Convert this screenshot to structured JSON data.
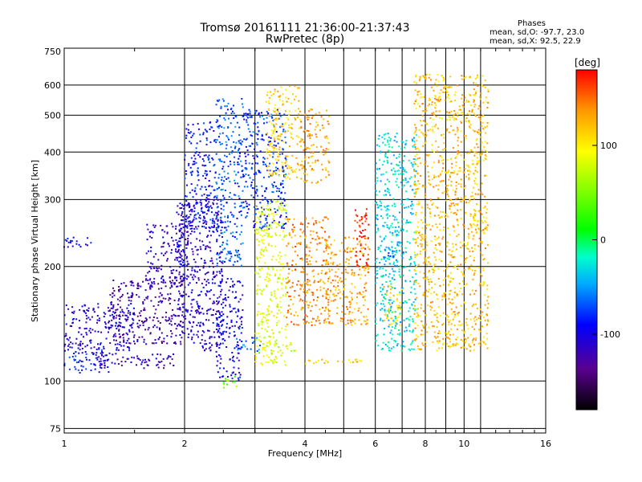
{
  "chart_data": {
    "type": "scatter",
    "title": "Tromsø 20161111 21:36:00-21:37:43",
    "subtitle": "RwPretec (8p)",
    "xlabel": "Frequency [MHz]",
    "ylabel": "Stationary phase Virtual Height [km]",
    "x_scale": "log",
    "y_scale": "log",
    "xlim": [
      1,
      16
    ],
    "ylim": [
      73,
      750
    ],
    "x_ticks": [
      1,
      2,
      4,
      6,
      8,
      10,
      16
    ],
    "x_tick_labels": [
      "1",
      "2",
      "4",
      "6",
      "8",
      "10",
      "16"
    ],
    "x_grid_extra": [
      3,
      5,
      7,
      9,
      11
    ],
    "y_ticks": [
      75,
      100,
      200,
      300,
      400,
      500,
      600,
      750
    ],
    "y_tick_labels": [
      "75",
      "100",
      "200",
      "300",
      "400",
      "500",
      "600",
      "750"
    ],
    "grid": true,
    "phase_box": {
      "title": "Phases",
      "line_o": "mean, sd,O: -97.7, 23.0",
      "line_x": "mean, sd,X:  92.5, 22.9"
    },
    "colorbar": {
      "label": "[deg]",
      "range": [
        -180,
        180
      ],
      "ticks": [
        100,
        0,
        -100
      ],
      "tick_labels": [
        "100",
        "0",
        "-100"
      ]
    },
    "regions": [
      {
        "f": [
          1.0,
          1.3
        ],
        "h": [
          105,
          125
        ],
        "phase": -90
      },
      {
        "f": [
          1.0,
          1.5
        ],
        "h": [
          120,
          160
        ],
        "phase": -105
      },
      {
        "f": [
          1.0,
          1.2
        ],
        "h": [
          225,
          240
        ],
        "phase": -100
      },
      {
        "f": [
          1.2,
          1.9
        ],
        "h": [
          108,
          118
        ],
        "phase": -118
      },
      {
        "f": [
          1.3,
          2.0
        ],
        "h": [
          125,
          185
        ],
        "phase": -125
      },
      {
        "f": [
          1.6,
          2.1
        ],
        "h": [
          180,
          260
        ],
        "phase": -115
      },
      {
        "f": [
          1.9,
          2.5
        ],
        "h": [
          120,
          300
        ],
        "phase": -108
      },
      {
        "f": [
          2.0,
          2.4
        ],
        "h": [
          250,
          480
        ],
        "phase": -90
      },
      {
        "f": [
          2.4,
          2.8
        ],
        "h": [
          200,
          560
        ],
        "phase": -70
      },
      {
        "f": [
          2.4,
          2.8
        ],
        "h": [
          100,
          190
        ],
        "phase": -100
      },
      {
        "f": [
          2.5,
          2.7
        ],
        "h": [
          96,
          104
        ],
        "phase": 40
      },
      {
        "f": [
          2.7,
          3.1
        ],
        "h": [
          118,
          130
        ],
        "phase": -60
      },
      {
        "f": [
          2.8,
          3.6
        ],
        "h": [
          250,
          520
        ],
        "phase": -80
      },
      {
        "f": [
          3.2,
          3.9
        ],
        "h": [
          340,
          600
        ],
        "phase": 115
      },
      {
        "f": [
          3.0,
          3.6
        ],
        "h": [
          110,
          300
        ],
        "phase": 85
      },
      {
        "f": [
          3.0,
          3.8
        ],
        "h": [
          118,
          126
        ],
        "phase": 75
      },
      {
        "f": [
          3.6,
          4.6
        ],
        "h": [
          140,
          270
        ],
        "phase": 140
      },
      {
        "f": [
          3.9,
          4.6
        ],
        "h": [
          330,
          520
        ],
        "phase": 130
      },
      {
        "f": [
          4.0,
          5.8
        ],
        "h": [
          110,
          114
        ],
        "phase": 110
      },
      {
        "f": [
          4.5,
          5.8
        ],
        "h": [
          140,
          240
        ],
        "phase": 130
      },
      {
        "f": [
          5.3,
          5.8
        ],
        "h": [
          200,
          290
        ],
        "phase": 175
      },
      {
        "f": [
          6.3,
          7.1
        ],
        "h": [
          200,
          225
        ],
        "phase": -60
      },
      {
        "f": [
          6.0,
          7.6
        ],
        "h": [
          120,
          450
        ],
        "phase": -30
      },
      {
        "f": [
          6.3,
          7.0
        ],
        "h": [
          140,
          180
        ],
        "phase": 110
      },
      {
        "f": [
          7.5,
          11.5
        ],
        "h": [
          120,
          640
        ],
        "phase": 120
      }
    ]
  }
}
